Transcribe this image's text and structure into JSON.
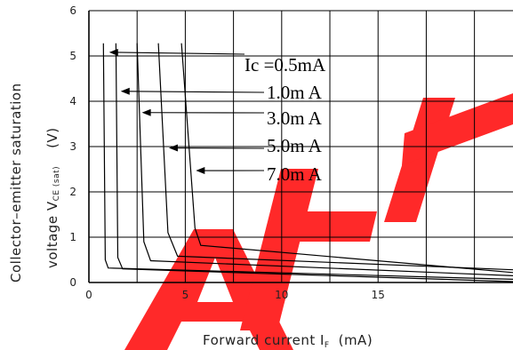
{
  "chart_data": {
    "type": "line",
    "title": "",
    "xlabel_main": "Forward current I",
    "xlabel_sub": "F",
    "xlabel_unit": "(mA)",
    "ylabel_line1": "Collector–emitter saturation",
    "ylabel_line2_prefix": "voltage V",
    "ylabel_line2_sub": "CE (sat)",
    "ylabel_line2_unit": "(V)",
    "xlim": [
      0,
      22
    ],
    "ylim": [
      0,
      6
    ],
    "x_ticks": [
      0,
      5,
      10,
      15
    ],
    "x_tick_labels": [
      "0",
      "5",
      "10",
      "15"
    ],
    "y_ticks": [
      0,
      1,
      2,
      3,
      4,
      5,
      6
    ],
    "y_tick_labels": [
      "0",
      "1",
      "2",
      "3",
      "4",
      "5",
      "6"
    ],
    "grid": true,
    "series": [
      {
        "name": "Ic =0.5mA",
        "x": [
          0.75,
          0.85,
          1.0,
          22.0
        ],
        "y": [
          5.28,
          0.5,
          0.32,
          0.07
        ]
      },
      {
        "name": "1.0m  A",
        "x": [
          1.4,
          1.5,
          1.75,
          22.0
        ],
        "y": [
          5.28,
          0.55,
          0.3,
          0.02
        ]
      },
      {
        "name": "3.0m  A",
        "x": [
          2.5,
          2.85,
          3.2,
          22.0
        ],
        "y": [
          5.28,
          0.9,
          0.48,
          0.15
        ]
      },
      {
        "name": "5.0m  A",
        "x": [
          3.6,
          4.1,
          4.6,
          22.0
        ],
        "y": [
          5.28,
          1.1,
          0.58,
          0.28
        ]
      },
      {
        "name": "7.0m  A",
        "x": [
          4.8,
          5.5,
          5.8,
          22.0
        ],
        "y": [
          5.28,
          1.2,
          0.82,
          0.22
        ]
      }
    ],
    "annotations": [
      {
        "text": "Ic =0.5mA",
        "points_to_series": 0,
        "arrow_tip": [
          1.05,
          5.08
        ]
      },
      {
        "text": "1.0m  A",
        "points_to_series": 1,
        "arrow_tip": [
          1.65,
          4.22
        ]
      },
      {
        "text": "3.0m  A",
        "points_to_series": 2,
        "arrow_tip": [
          2.75,
          3.75
        ]
      },
      {
        "text": "5.0m  A",
        "points_to_series": 3,
        "arrow_tip": [
          4.15,
          2.97
        ]
      },
      {
        "text": "7.0m  A",
        "points_to_series": 4,
        "arrow_tip": [
          5.55,
          2.47
        ]
      }
    ],
    "watermark_color": "#ff1e1e"
  }
}
